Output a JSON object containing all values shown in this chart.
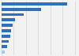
{
  "values": [
    5349,
    3200,
    1800,
    1100,
    900,
    780,
    680,
    580,
    480,
    280
  ],
  "bar_color": "#3070b8",
  "last_bar_color": "#a8c8e8",
  "background_color": "#f2f2f2",
  "grid_color": "#cccccc",
  "xlim": [
    0,
    6200
  ],
  "n_bars": 10,
  "figsize": [
    1.0,
    0.71
  ],
  "dpi": 100,
  "bar_height": 0.55
}
